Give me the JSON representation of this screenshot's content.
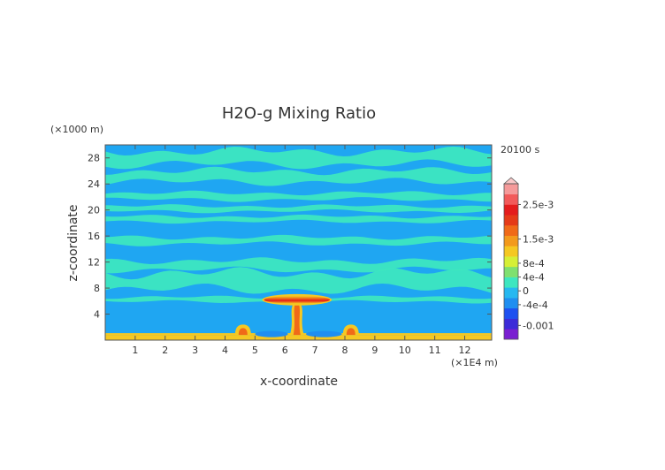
{
  "chart_data": {
    "type": "heatmap",
    "title": "H2O-g Mixing Ratio",
    "xlabel": "x-coordinate",
    "ylabel": "z-coordinate",
    "x_unit": "(×1E4 m)",
    "y_unit": "(×1000 m)",
    "time_label": "20100 s",
    "xlim": [
      0,
      12.9
    ],
    "ylim": [
      0,
      30
    ],
    "x_ticks": [
      "1",
      "2",
      "3",
      "4",
      "5",
      "6",
      "7",
      "8",
      "9",
      "10",
      "11",
      "12"
    ],
    "y_ticks": [
      "4",
      "8",
      "12",
      "16",
      "20",
      "24",
      "28"
    ],
    "colorbar": {
      "labels": [
        "2.5e-3",
        "1.5e-3",
        "8e-4",
        "4e-4",
        "0",
        "-4e-4",
        "-0.001"
      ],
      "label_values": [
        0.0025,
        0.0015,
        0.0008,
        0.0004,
        0,
        -0.0004,
        -0.001
      ],
      "range": [
        -0.0014,
        0.0031
      ],
      "colors": [
        "#7a1fd1",
        "#3c2bd8",
        "#1e50f0",
        "#1f8ef0",
        "#26b8f0",
        "#3de6c0",
        "#7fe070",
        "#d6ef36",
        "#f5c822",
        "#f39a1c",
        "#f06a18",
        "#e53a18",
        "#e41c1c",
        "#f25a5a",
        "#f59a9a"
      ]
    },
    "field": {
      "background": "#1fa6f2",
      "bands": [
        {
          "z_bottom": 27.0,
          "z_top": 29.0,
          "value": 0.0001
        },
        {
          "z_bottom": 24.3,
          "z_top": 26.0,
          "value": 0.0001
        },
        {
          "z_bottom": 21.6,
          "z_top": 22.6,
          "value": 0.0001
        },
        {
          "z_bottom": 19.8,
          "z_top": 20.6,
          "value": 0.0001
        },
        {
          "z_bottom": 18.2,
          "z_top": 19.0,
          "value": 0.0001
        },
        {
          "z_bottom": 14.8,
          "z_top": 15.8,
          "value": 0.0001
        },
        {
          "z_bottom": 10.8,
          "z_top": 12.2,
          "value": 0.0001
        },
        {
          "z_bottom": 7.8,
          "z_top": 10.3,
          "value": 0.0001
        },
        {
          "z_bottom": 5.9,
          "z_top": 6.6,
          "value": 0.0001
        }
      ],
      "surface_layer": {
        "z_top": 0.8,
        "value": 0.0012
      },
      "anvil": {
        "x_center": 6.4,
        "z_center": 6.2,
        "half_width": 1.1,
        "half_height": 0.6,
        "value": 0.0022
      },
      "updraft_core": {
        "x_center": 6.4,
        "z_bottom": 0.8,
        "z_top": 5.6,
        "value": 0.0018
      },
      "side_plumes": [
        {
          "x_center": 4.6,
          "z_top": 2.4,
          "value": 0.0016
        },
        {
          "x_center": 8.2,
          "z_top": 2.4,
          "value": 0.0016
        }
      ],
      "drying_zones": [
        {
          "x_start": 5.0,
          "x_end": 6.1,
          "z_center": 0.8,
          "value": -0.0005
        },
        {
          "x_start": 6.7,
          "x_end": 7.9,
          "z_center": 0.8,
          "value": -0.0005
        }
      ]
    }
  }
}
